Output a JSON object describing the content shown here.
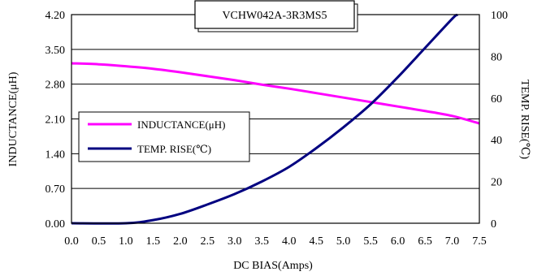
{
  "chart_data": {
    "type": "line",
    "title": "VCHW042A-3R3MS5",
    "xlabel": "DC BIAS(Amps)",
    "ylabel_left": "INDUCTANCE(μH)",
    "ylabel_right": "TEMP. RISE(℃)",
    "xlim": [
      0,
      7.5
    ],
    "ylim_left": [
      0,
      4.2
    ],
    "ylim_right": [
      0,
      100
    ],
    "x_ticks": [
      "0.0",
      "0.5",
      "1.0",
      "1.5",
      "2.0",
      "2.5",
      "3.0",
      "3.5",
      "4.0",
      "4.5",
      "5.0",
      "5.5",
      "6.0",
      "6.5",
      "7.0",
      "7.5"
    ],
    "y_left_ticks": [
      "0.00",
      "0.70",
      "1.40",
      "2.10",
      "2.80",
      "3.50",
      "4.20"
    ],
    "y_right_ticks": [
      "0",
      "20",
      "40",
      "60",
      "80",
      "100"
    ],
    "grid": "horizontal",
    "legend_position": "left-middle",
    "series": [
      {
        "name": "INDUCTANCE(μH)",
        "axis": "left",
        "color": "#ff00ff",
        "x": [
          0.0,
          0.5,
          1.0,
          1.5,
          2.0,
          2.5,
          3.0,
          3.5,
          4.0,
          4.5,
          5.0,
          5.5,
          6.0,
          6.5,
          7.0,
          7.5
        ],
        "y": [
          3.22,
          3.2,
          3.16,
          3.11,
          3.04,
          2.96,
          2.88,
          2.79,
          2.71,
          2.62,
          2.53,
          2.44,
          2.35,
          2.26,
          2.16,
          2.01
        ]
      },
      {
        "name": "TEMP. RISE(℃)",
        "axis": "right",
        "color": "#000080",
        "x": [
          0.0,
          1.0,
          1.5,
          2.0,
          2.5,
          3.0,
          3.5,
          4.0,
          4.5,
          5.0,
          5.5,
          6.0,
          6.5,
          7.0,
          7.1
        ],
        "y": [
          0,
          0,
          1.5,
          4.5,
          9,
          14,
          20,
          27,
          36,
          46,
          57,
          70,
          84,
          98,
          100
        ]
      }
    ]
  }
}
